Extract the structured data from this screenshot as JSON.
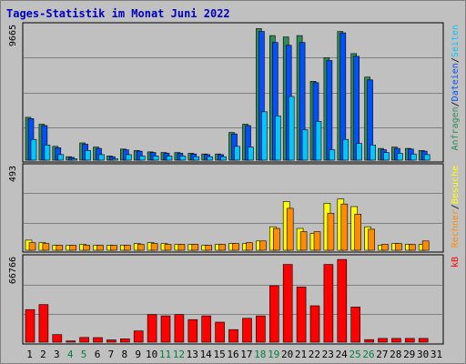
{
  "title": "Tages-Statistik im Monat Juni 2022",
  "colors": {
    "anfragen": "#2e8b57",
    "dateien": "#0050ff",
    "seiten": "#00c8ff",
    "besuche": "#ffff00",
    "rechner": "#ff8c00",
    "kb": "#ff0000",
    "weekend_label": "#008040"
  },
  "chart_data": [
    {
      "type": "bar",
      "title": "Anfragen / Dateien / Seiten",
      "ymax_label": "9665",
      "ylim": [
        0,
        9665
      ],
      "categories": [
        "1",
        "2",
        "3",
        "4",
        "5",
        "6",
        "7",
        "8",
        "9",
        "10",
        "11",
        "12",
        "13",
        "14",
        "15",
        "16",
        "17",
        "18",
        "19",
        "20",
        "21",
        "22",
        "23",
        "24",
        "25",
        "26",
        "27",
        "28",
        "29",
        "30",
        "31"
      ],
      "right_labels": [
        "Anfragen",
        "/",
        "Dateien",
        "/",
        "Seiten"
      ],
      "series": [
        {
          "name": "Anfragen",
          "values": [
            3100,
            2600,
            1000,
            250,
            1250,
            950,
            300,
            800,
            700,
            600,
            550,
            550,
            500,
            450,
            450,
            2000,
            2600,
            9500,
            9000,
            8900,
            9000,
            5700,
            7400,
            9300,
            7700,
            6000,
            850,
            950,
            850,
            700,
            0
          ]
        },
        {
          "name": "Dateien",
          "values": [
            3000,
            2500,
            900,
            200,
            1150,
            850,
            250,
            750,
            650,
            550,
            500,
            500,
            450,
            400,
            400,
            1900,
            2500,
            9300,
            8500,
            8300,
            8500,
            5600,
            7200,
            9200,
            7500,
            5800,
            750,
            850,
            800,
            650,
            0
          ]
        },
        {
          "name": "Seiten",
          "values": [
            1500,
            1100,
            400,
            100,
            700,
            400,
            100,
            400,
            300,
            300,
            300,
            300,
            250,
            250,
            250,
            1000,
            950,
            3500,
            3200,
            4600,
            2200,
            2800,
            750,
            1500,
            1200,
            1100,
            550,
            500,
            450,
            400,
            0
          ]
        }
      ]
    },
    {
      "type": "bar",
      "title": "Besuche / Rechner",
      "ymax_label": "493",
      "ylim": [
        0,
        493
      ],
      "categories": [
        "1",
        "2",
        "3",
        "4",
        "5",
        "6",
        "7",
        "8",
        "9",
        "10",
        "11",
        "12",
        "13",
        "14",
        "15",
        "16",
        "17",
        "18",
        "19",
        "20",
        "21",
        "22",
        "23",
        "24",
        "25",
        "26",
        "27",
        "28",
        "29",
        "30",
        "31"
      ],
      "right_labels": [
        "Rechner",
        "/",
        "Besuche"
      ],
      "series": [
        {
          "name": "Besuche",
          "values": [
            60,
            45,
            30,
            30,
            35,
            30,
            30,
            30,
            40,
            45,
            40,
            35,
            35,
            30,
            35,
            40,
            40,
            55,
            140,
            290,
            130,
            100,
            280,
            305,
            260,
            140,
            30,
            40,
            35,
            35,
            0
          ]
        },
        {
          "name": "Rechner",
          "values": [
            45,
            40,
            30,
            30,
            30,
            30,
            30,
            30,
            35,
            40,
            35,
            35,
            35,
            30,
            35,
            40,
            45,
            55,
            130,
            250,
            110,
            110,
            220,
            275,
            215,
            125,
            35,
            40,
            35,
            55,
            0
          ]
        }
      ]
    },
    {
      "type": "bar",
      "title": "kB",
      "ymax_label": "66766",
      "ylim": [
        0,
        66766
      ],
      "categories": [
        "1",
        "2",
        "3",
        "4",
        "5",
        "6",
        "7",
        "8",
        "9",
        "10",
        "11",
        "12",
        "13",
        "14",
        "15",
        "16",
        "17",
        "18",
        "19",
        "20",
        "21",
        "22",
        "23",
        "24",
        "25",
        "26",
        "27",
        "28",
        "29",
        "30",
        "31"
      ],
      "right_labels": [
        "kB"
      ],
      "series": [
        {
          "name": "kB",
          "values": [
            26000,
            30000,
            6000,
            1000,
            3800,
            3600,
            1800,
            2700,
            9000,
            22000,
            21000,
            22000,
            18000,
            21000,
            16000,
            10000,
            19000,
            21000,
            45000,
            62000,
            44000,
            29000,
            62000,
            66000,
            28000,
            2000,
            3000,
            3000,
            3000,
            3000,
            0
          ]
        }
      ]
    }
  ],
  "weekend_days": [
    "4",
    "5",
    "11",
    "12",
    "18",
    "19",
    "25",
    "26"
  ]
}
